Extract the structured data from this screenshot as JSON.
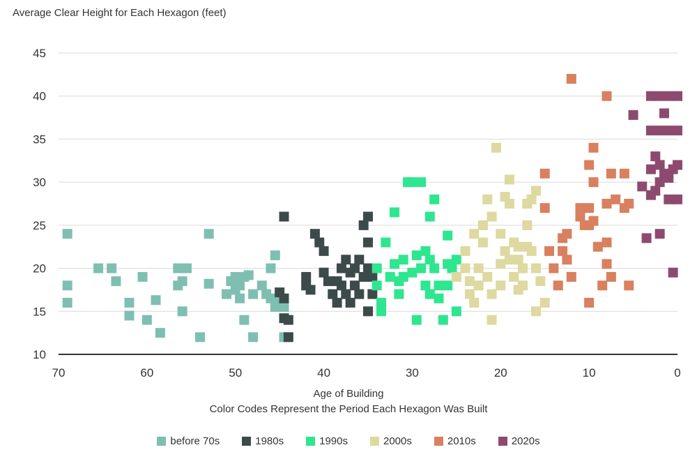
{
  "chart_data": {
    "type": "scatter",
    "title": "",
    "ylabel": "Average Clear Height for Each Hexagon (feet)",
    "xlabel": "Age of Building",
    "xlabel_sub": "Color Codes Represent the Period Each Hexagon Was Built",
    "xlim": [
      70,
      0
    ],
    "ylim": [
      10,
      45
    ],
    "xticks": [
      70,
      60,
      50,
      40,
      30,
      20,
      10,
      0
    ],
    "yticks": [
      10,
      15,
      20,
      25,
      30,
      35,
      40,
      45
    ],
    "grid": "horizontal",
    "legend_position": "bottom",
    "series": [
      {
        "name": "before 70s",
        "color": "#7fbfb2",
        "points": [
          [
            69,
            24
          ],
          [
            69,
            18
          ],
          [
            69,
            16
          ],
          [
            65.5,
            20
          ],
          [
            64,
            20
          ],
          [
            63.5,
            18.5
          ],
          [
            62,
            16
          ],
          [
            62,
            14.5
          ],
          [
            60.5,
            19
          ],
          [
            60,
            14
          ],
          [
            59,
            16.3
          ],
          [
            58.5,
            12.5
          ],
          [
            56.5,
            20
          ],
          [
            56.5,
            18
          ],
          [
            56,
            18.5
          ],
          [
            56,
            15
          ],
          [
            55.5,
            20
          ],
          [
            54,
            12
          ],
          [
            53,
            24
          ],
          [
            53,
            18.2
          ],
          [
            51,
            17
          ],
          [
            50.5,
            18.5
          ],
          [
            50,
            19
          ],
          [
            50,
            17.5
          ],
          [
            49.5,
            18
          ],
          [
            49.5,
            16.5
          ],
          [
            49,
            19
          ],
          [
            49,
            14
          ],
          [
            48.5,
            19.2
          ],
          [
            48,
            17
          ],
          [
            48,
            12
          ],
          [
            47,
            18
          ],
          [
            46.5,
            17
          ],
          [
            46,
            20
          ],
          [
            46,
            16.5
          ],
          [
            45.5,
            21.5
          ],
          [
            45.5,
            15.5
          ],
          [
            45,
            16.5
          ],
          [
            44.5,
            12
          ],
          [
            44.5,
            15.5
          ]
        ]
      },
      {
        "name": "1980s",
        "color": "#3d4a4a",
        "points": [
          [
            44.5,
            26
          ],
          [
            45,
            17.2
          ],
          [
            44.5,
            16.5
          ],
          [
            44.5,
            14.2
          ],
          [
            44,
            14
          ],
          [
            44,
            12
          ],
          [
            42,
            18
          ],
          [
            42,
            19
          ],
          [
            41.5,
            17.5
          ],
          [
            41,
            24
          ],
          [
            40.5,
            23
          ],
          [
            40,
            22
          ],
          [
            40,
            19.5
          ],
          [
            39.5,
            18.5
          ],
          [
            39,
            17
          ],
          [
            38.5,
            16
          ],
          [
            38.5,
            18.5
          ],
          [
            38,
            20
          ],
          [
            38,
            18
          ],
          [
            37.5,
            21
          ],
          [
            37.5,
            17
          ],
          [
            37,
            19.5
          ],
          [
            37,
            16
          ],
          [
            36.5,
            20
          ],
          [
            36.5,
            18
          ],
          [
            36,
            21
          ],
          [
            36,
            17
          ],
          [
            35.5,
            25
          ],
          [
            35.5,
            19
          ],
          [
            35,
            26
          ],
          [
            35,
            23
          ],
          [
            35,
            20
          ],
          [
            35,
            15
          ],
          [
            34.5,
            19
          ],
          [
            34.5,
            17
          ]
        ]
      },
      {
        "name": "1990s",
        "color": "#2ee68f",
        "points": [
          [
            34,
            20
          ],
          [
            34,
            18
          ],
          [
            33.5,
            16
          ],
          [
            33.5,
            15
          ],
          [
            33,
            23
          ],
          [
            32.5,
            19
          ],
          [
            32,
            26.5
          ],
          [
            32,
            20.5
          ],
          [
            31.5,
            18.5
          ],
          [
            31.5,
            17
          ],
          [
            31,
            21
          ],
          [
            31,
            19
          ],
          [
            30.5,
            30
          ],
          [
            30,
            30
          ],
          [
            30,
            19.5
          ],
          [
            29.5,
            14
          ],
          [
            29.5,
            21.5
          ],
          [
            29,
            30
          ],
          [
            29,
            20
          ],
          [
            28.5,
            22
          ],
          [
            28.5,
            18
          ],
          [
            28,
            26
          ],
          [
            28,
            21
          ],
          [
            28,
            17
          ],
          [
            27.5,
            28
          ],
          [
            27.5,
            20
          ],
          [
            27,
            18
          ],
          [
            27,
            16.5
          ],
          [
            26.5,
            14
          ],
          [
            26,
            23.8
          ],
          [
            26,
            20.5
          ],
          [
            26,
            18
          ],
          [
            25.5,
            20
          ],
          [
            25,
            21
          ],
          [
            25,
            15
          ]
        ]
      },
      {
        "name": "2000s",
        "color": "#ddd9a0",
        "points": [
          [
            25,
            19
          ],
          [
            24,
            22
          ],
          [
            24,
            20
          ],
          [
            23.5,
            18.5
          ],
          [
            23.5,
            17
          ],
          [
            23,
            24
          ],
          [
            23,
            16
          ],
          [
            22.5,
            20
          ],
          [
            22.5,
            18
          ],
          [
            22,
            25
          ],
          [
            22,
            23
          ],
          [
            21.5,
            28
          ],
          [
            21.5,
            19
          ],
          [
            21,
            26
          ],
          [
            21,
            17
          ],
          [
            21,
            14
          ],
          [
            20.5,
            34
          ],
          [
            20,
            24
          ],
          [
            20,
            20.5
          ],
          [
            20,
            18
          ],
          [
            19.5,
            28.3
          ],
          [
            19.5,
            22
          ],
          [
            19,
            30.3
          ],
          [
            19,
            27.5
          ],
          [
            19,
            21
          ],
          [
            18.5,
            23
          ],
          [
            18.5,
            19
          ],
          [
            18,
            22.5
          ],
          [
            18,
            21
          ],
          [
            18,
            17.5
          ],
          [
            17.5,
            20
          ],
          [
            17.5,
            18
          ],
          [
            17,
            27.5
          ],
          [
            17,
            25
          ],
          [
            17,
            22.5
          ],
          [
            16.5,
            28
          ],
          [
            16.5,
            22
          ],
          [
            16,
            29
          ],
          [
            16,
            20
          ],
          [
            15.5,
            18.5
          ],
          [
            16,
            15
          ],
          [
            15,
            16
          ]
        ]
      },
      {
        "name": "2010s",
        "color": "#d9805e",
        "points": [
          [
            15,
            31
          ],
          [
            15,
            27
          ],
          [
            14.5,
            22
          ],
          [
            14,
            20
          ],
          [
            13.5,
            18
          ],
          [
            13,
            23.5
          ],
          [
            13,
            22
          ],
          [
            12.5,
            24
          ],
          [
            12.5,
            21
          ],
          [
            12,
            42
          ],
          [
            12,
            19
          ],
          [
            11,
            27
          ],
          [
            11,
            26
          ],
          [
            10.5,
            25
          ],
          [
            10,
            32
          ],
          [
            10,
            27
          ],
          [
            10,
            25
          ],
          [
            10,
            16
          ],
          [
            9.5,
            34
          ],
          [
            9.5,
            30
          ],
          [
            9.5,
            25.5
          ],
          [
            9,
            22.5
          ],
          [
            8.5,
            18
          ],
          [
            8,
            40
          ],
          [
            8,
            27.5
          ],
          [
            8,
            23
          ],
          [
            8,
            20.5
          ],
          [
            7.5,
            31
          ],
          [
            7.5,
            19
          ],
          [
            7,
            28
          ],
          [
            6,
            31
          ],
          [
            6,
            27
          ],
          [
            5.5,
            27.5
          ],
          [
            5.5,
            18
          ]
        ]
      },
      {
        "name": "2020s",
        "color": "#8e4a6e",
        "points": [
          [
            5,
            37.8
          ],
          [
            4,
            29.5
          ],
          [
            3.5,
            23.5
          ],
          [
            3,
            40
          ],
          [
            3,
            36
          ],
          [
            3,
            31.5
          ],
          [
            3,
            28.5
          ],
          [
            2.5,
            29
          ],
          [
            2.5,
            33
          ],
          [
            2,
            40
          ],
          [
            2,
            36
          ],
          [
            2,
            32
          ],
          [
            2,
            30
          ],
          [
            2,
            24
          ],
          [
            1.5,
            38
          ],
          [
            1.5,
            31
          ],
          [
            1,
            40
          ],
          [
            1,
            36
          ],
          [
            1,
            30.5
          ],
          [
            1,
            28
          ],
          [
            0.5,
            31.5
          ],
          [
            0.5,
            19.5
          ],
          [
            0,
            40
          ],
          [
            0,
            36
          ],
          [
            0,
            32
          ],
          [
            0,
            28
          ]
        ]
      }
    ]
  }
}
